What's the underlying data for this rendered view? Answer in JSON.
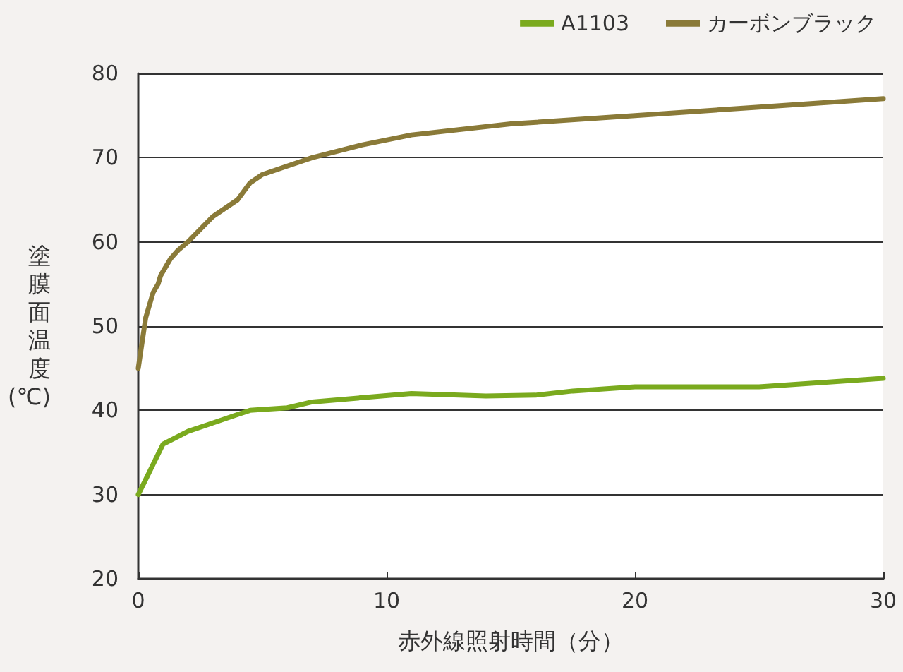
{
  "chart_data": {
    "type": "line",
    "xlabel": "赤外線照射時間（分）",
    "ylabel": "塗膜面温度(℃)",
    "xlim": [
      0,
      30
    ],
    "xticks": [
      0,
      10,
      20,
      30
    ],
    "ylim": [
      20,
      80
    ],
    "yticks": [
      20,
      30,
      40,
      50,
      60,
      70,
      80
    ],
    "grid": "y",
    "legend": "top right",
    "marker": "none",
    "line_style": "solid",
    "series": [
      {
        "name": "A1103",
        "color": "#7aaa1e",
        "x": [
          0,
          0.5,
          1,
          2,
          3,
          4,
          4.5,
          6,
          7,
          11,
          14,
          16,
          17.5,
          20,
          25,
          30
        ],
        "values": [
          30,
          33,
          36,
          37.5,
          38.5,
          39.5,
          40,
          40.3,
          41,
          42,
          41.7,
          41.8,
          42.3,
          42.8,
          42.8,
          43.8
        ]
      },
      {
        "name": "カーボンブラック",
        "color": "#8a7a38",
        "x": [
          0,
          0.3,
          0.6,
          0.8,
          0.9,
          1.3,
          1.6,
          2,
          3,
          4,
          4.5,
          5,
          6,
          7,
          9,
          11,
          15,
          20,
          25,
          30
        ],
        "values": [
          45,
          51,
          54,
          55,
          56,
          58,
          59,
          60,
          63,
          65,
          67,
          68,
          69,
          70,
          71.5,
          72.7,
          74,
          75,
          76,
          77
        ]
      }
    ]
  }
}
